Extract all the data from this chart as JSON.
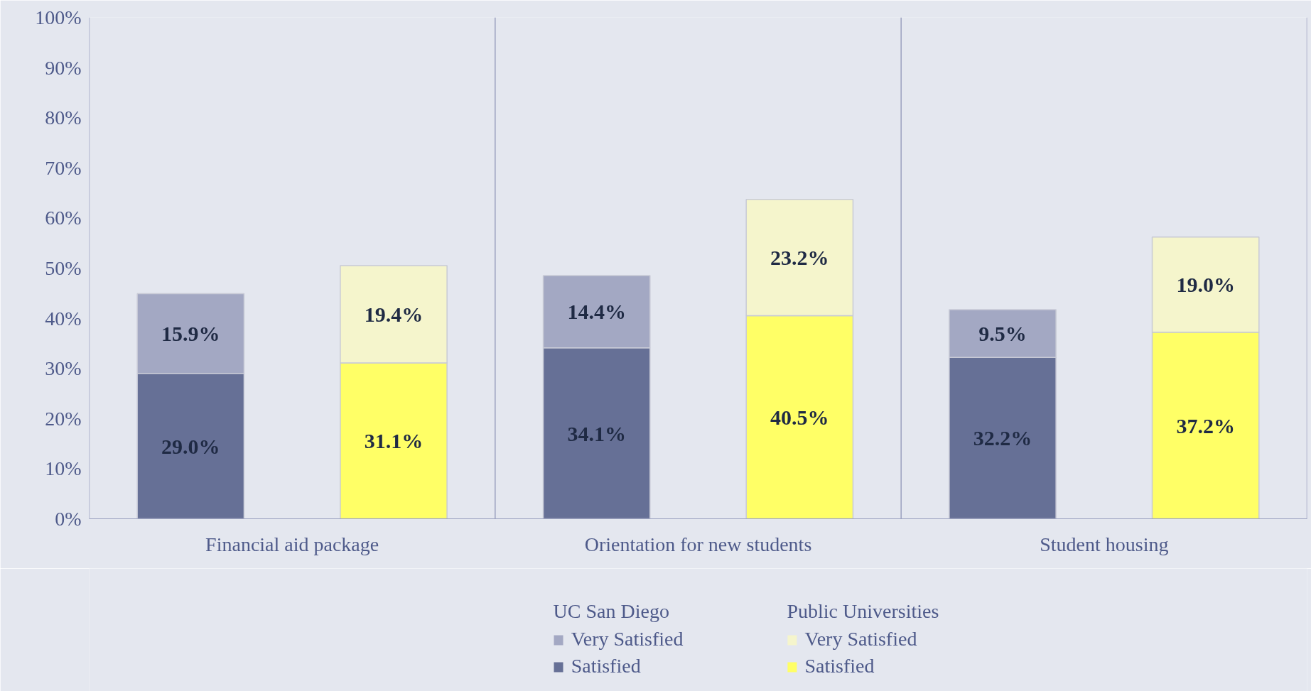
{
  "chart_data": {
    "type": "bar",
    "stacked": true,
    "legend": "bottom",
    "grid": false,
    "annotations": [
      "Financial aid package",
      "Orientation for new students",
      "Student housing",
      "UC San Diego",
      "Public Universities"
    ],
    "categories": [
      null,
      null,
      null,
      null,
      null,
      null
    ],
    "ylim": [
      0,
      100
    ],
    "yticks": [
      {
        "value": 0,
        "label": "0%"
      },
      {
        "value": 10,
        "label": "10%"
      },
      {
        "value": 20,
        "label": "20%"
      },
      {
        "value": 30,
        "label": "30%"
      },
      {
        "value": 40,
        "label": "40%"
      },
      {
        "value": 50,
        "label": "50%"
      },
      {
        "value": 60,
        "label": "60%"
      },
      {
        "value": 70,
        "label": "70%"
      },
      {
        "value": 80,
        "label": "80%"
      },
      {
        "value": 90,
        "label": "90%"
      },
      {
        "value": 100,
        "label": "100%"
      }
    ],
    "series": [
      {
        "name": "Satisfied",
        "color": "#667096",
        "values": [
          29.0,
          null,
          34.1,
          null,
          32.2,
          null
        ],
        "value_labels": [
          "29.0%",
          null,
          "34.1%",
          null,
          "32.2%",
          null
        ]
      },
      {
        "name": "Very Satisfied",
        "color": "#a3a8c3",
        "values": [
          15.9,
          null,
          14.4,
          null,
          9.5,
          null
        ],
        "value_labels": [
          "15.9%",
          null,
          "14.4%",
          null,
          "9.5%",
          null
        ]
      },
      {
        "name": "Satisfied",
        "color": "#ffff66",
        "values": [
          null,
          31.1,
          null,
          40.5,
          null,
          37.2
        ],
        "value_labels": [
          null,
          "31.1%",
          null,
          "40.5%",
          null,
          "37.2%"
        ]
      },
      {
        "name": "Very Satisfied",
        "color": "#f5f5cc",
        "values": [
          null,
          19.4,
          null,
          23.2,
          null,
          19.0
        ],
        "value_labels": [
          null,
          "19.4%",
          null,
          "23.2%",
          null,
          "19.0%"
        ]
      }
    ]
  }
}
